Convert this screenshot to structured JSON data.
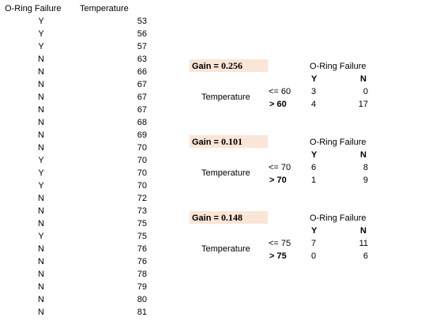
{
  "table": {
    "headers": {
      "failure": "O-Ring Failure",
      "temperature": "Temperature"
    },
    "rows": [
      {
        "failure": "Y",
        "temperature": "53"
      },
      {
        "failure": "Y",
        "temperature": "56"
      },
      {
        "failure": "Y",
        "temperature": "57"
      },
      {
        "failure": "N",
        "temperature": "63"
      },
      {
        "failure": "N",
        "temperature": "66"
      },
      {
        "failure": "N",
        "temperature": "67"
      },
      {
        "failure": "N",
        "temperature": "67"
      },
      {
        "failure": "N",
        "temperature": "67"
      },
      {
        "failure": "N",
        "temperature": "68"
      },
      {
        "failure": "N",
        "temperature": "69"
      },
      {
        "failure": "N",
        "temperature": "70"
      },
      {
        "failure": "Y",
        "temperature": "70"
      },
      {
        "failure": "Y",
        "temperature": "70"
      },
      {
        "failure": "Y",
        "temperature": "70"
      },
      {
        "failure": "N",
        "temperature": "72"
      },
      {
        "failure": "N",
        "temperature": "73"
      },
      {
        "failure": "N",
        "temperature": "75"
      },
      {
        "failure": "Y",
        "temperature": "75"
      },
      {
        "failure": "N",
        "temperature": "76"
      },
      {
        "failure": "N",
        "temperature": "76"
      },
      {
        "failure": "N",
        "temperature": "78"
      },
      {
        "failure": "N",
        "temperature": "79"
      },
      {
        "failure": "N",
        "temperature": "80"
      },
      {
        "failure": "N",
        "temperature": "81"
      }
    ]
  },
  "splits": [
    {
      "gain_label": "Gain = ",
      "gain_value": "0.256",
      "row_label": "Temperature",
      "col_title": "O-Ring Failure",
      "col_y": "Y",
      "col_n": "N",
      "cond_low": "<= 60",
      "cond_high": "> 60",
      "low_y": "3",
      "low_n": "0",
      "high_y": "4",
      "high_n": "17"
    },
    {
      "gain_label": "Gain = ",
      "gain_value": "0.101",
      "row_label": "Temperature",
      "col_title": "O-Ring Failure",
      "col_y": "Y",
      "col_n": "N",
      "cond_low": "<= 70",
      "cond_high": "> 70",
      "low_y": "6",
      "low_n": "8",
      "high_y": "1",
      "high_n": "9"
    },
    {
      "gain_label": "Gain = ",
      "gain_value": "0.148",
      "row_label": "Temperature",
      "col_title": "O-Ring Failure",
      "col_y": "Y",
      "col_n": "N",
      "cond_low": "<= 75",
      "cond_high": "> 75",
      "low_y": "7",
      "low_n": "11",
      "high_y": "0",
      "high_n": "6"
    }
  ]
}
